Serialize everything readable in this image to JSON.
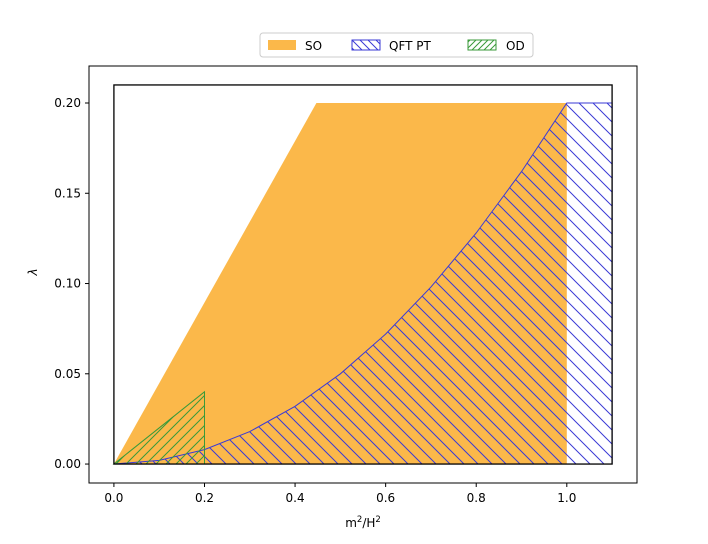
{
  "chart_data": {
    "type": "area",
    "title": "",
    "xlabel": "m²/H²",
    "ylabel": "λ",
    "xlim": [
      -0.055,
      1.155
    ],
    "ylim": [
      -0.0105,
      0.2205
    ],
    "xticks": [
      "0.0",
      "0.2",
      "0.4",
      "0.6",
      "0.8",
      "1.0"
    ],
    "xtick_values": [
      0.0,
      0.2,
      0.4,
      0.6,
      0.8,
      1.0
    ],
    "yticks": [
      "0.00",
      "0.05",
      "0.10",
      "0.15",
      "0.20"
    ],
    "ytick_values": [
      0.0,
      0.05,
      0.1,
      0.15,
      0.2
    ],
    "grid": false,
    "legend_position": "top-center, above plot",
    "frame_box": {
      "x": [
        0.0,
        1.1
      ],
      "y": [
        0.0,
        0.21
      ]
    },
    "series": [
      {
        "name": "SO",
        "style": "filled",
        "color": "#fbb036",
        "polygon": [
          [
            0.0,
            0.0
          ],
          [
            0.447,
            0.2
          ],
          [
            1.0,
            0.2
          ],
          [
            1.0,
            0.0
          ]
        ]
      },
      {
        "name": "QFT PT",
        "style": "hatch-backslash",
        "color": "#3a3ad6",
        "curve": "lambda = 0.2 * x^2",
        "polygon": [
          [
            0.0,
            0.0
          ],
          [
            0.1,
            0.002
          ],
          [
            0.2,
            0.008
          ],
          [
            0.3,
            0.018
          ],
          [
            0.4,
            0.032
          ],
          [
            0.5,
            0.05
          ],
          [
            0.6,
            0.072
          ],
          [
            0.7,
            0.098
          ],
          [
            0.8,
            0.128
          ],
          [
            0.9,
            0.162
          ],
          [
            1.0,
            0.2
          ],
          [
            1.1,
            0.2
          ],
          [
            1.1,
            0.0
          ]
        ]
      },
      {
        "name": "OD",
        "style": "hatch-slash",
        "color": "#3a9a3a",
        "polygon": [
          [
            0.0,
            0.0
          ],
          [
            0.2,
            0.04
          ],
          [
            0.2,
            0.0
          ]
        ]
      }
    ]
  },
  "legend": {
    "items": [
      {
        "label": "SO",
        "color": "#fbb036",
        "swatch": "filled"
      },
      {
        "label": "QFT PT",
        "color": "#3a3ad6",
        "swatch": "hatch-backslash"
      },
      {
        "label": "OD",
        "color": "#3a9a3a",
        "swatch": "hatch-slash"
      }
    ]
  }
}
